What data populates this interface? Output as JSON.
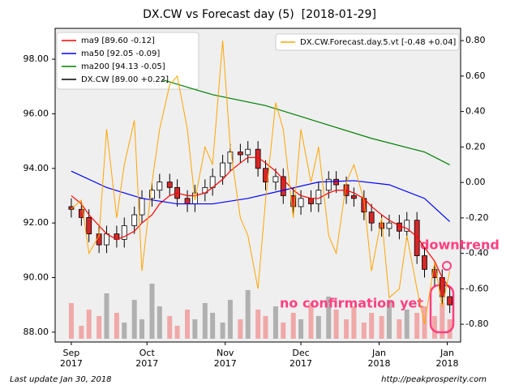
{
  "chart_data": {
    "type": "candlestick",
    "title": "DX.CW vs Forecast day (5)  [2018-01-29]",
    "footer_left": "Last update Jan 30, 2018",
    "footer_right": "http://peakprosperity.com",
    "annotations": [
      "downtrend",
      "no confirmation yet"
    ],
    "xlim": [
      -6.4,
      154.3
    ],
    "xticks": [
      {
        "value": 0,
        "label": "Sep\n2017"
      },
      {
        "value": 30,
        "label": "Oct\n2017"
      },
      {
        "value": 61,
        "label": "Nov\n2017"
      },
      {
        "value": 91,
        "label": "Dec\n2017"
      },
      {
        "value": 122,
        "label": "Jan\n2018"
      },
      {
        "value": 149,
        "label": "Jan\n2018"
      }
    ],
    "ylim": [
      87.64,
      99.13
    ],
    "yticks": [
      {
        "value": 88,
        "label": "88.00"
      },
      {
        "value": 90,
        "label": "90.00"
      },
      {
        "value": 92,
        "label": "92.00"
      },
      {
        "value": 94,
        "label": "94.00"
      },
      {
        "value": 96,
        "label": "96.00"
      },
      {
        "value": 98,
        "label": "98.00"
      }
    ],
    "y2lim": [
      -0.9,
      0.869
    ],
    "y2ticks": [
      {
        "value": -0.8,
        "label": "-0.80"
      },
      {
        "value": -0.6,
        "label": "-0.60"
      },
      {
        "value": -0.4,
        "label": "-0.40"
      },
      {
        "value": -0.2,
        "label": "-0.20"
      },
      {
        "value": 0,
        "label": "0.00"
      },
      {
        "value": 0.2,
        "label": "0.20"
      },
      {
        "value": 0.4,
        "label": "0.40"
      },
      {
        "value": 0.6,
        "label": "0.60"
      },
      {
        "value": 0.8,
        "label": "0.80"
      }
    ],
    "volume_ylim": [
      0,
      100
    ],
    "candles": {
      "name": "DX.CW [89.00 +0.22]",
      "up_color": "#ffffff",
      "down_color": "#d62728",
      "volume_up_color": "#b0b0b0",
      "volume_down_color": "#f0a8a8",
      "x": [
        0,
        4,
        7,
        11,
        14,
        18,
        21,
        25,
        28,
        32,
        35,
        39,
        42,
        46,
        49,
        53,
        56,
        60,
        63,
        67,
        70,
        74,
        77,
        81,
        84,
        88,
        91,
        95,
        98,
        102,
        105,
        109,
        112,
        116,
        119,
        123,
        126,
        130,
        133,
        137,
        140,
        144,
        147,
        150
      ],
      "open": [
        92.6,
        92.5,
        92.2,
        91.6,
        91.2,
        91.6,
        91.4,
        91.9,
        92.3,
        92.9,
        93.2,
        93.5,
        93.3,
        92.9,
        92.7,
        93.1,
        93.3,
        93.7,
        94.2,
        94.6,
        94.5,
        94.7,
        94.0,
        93.5,
        93.7,
        93.0,
        92.6,
        92.9,
        92.7,
        93.2,
        93.6,
        93.4,
        93.0,
        92.9,
        92.4,
        92.0,
        91.8,
        92.0,
        91.7,
        92.1,
        90.8,
        90.3,
        90.0,
        89.3
      ],
      "high": [
        92.9,
        92.8,
        92.5,
        91.9,
        91.9,
        91.9,
        92.2,
        92.6,
        93.2,
        93.5,
        93.8,
        93.8,
        93.6,
        93.2,
        93.4,
        93.6,
        94.0,
        94.5,
        94.9,
        94.9,
        95.0,
        95.0,
        94.3,
        94.0,
        94.0,
        93.3,
        93.2,
        93.2,
        93.5,
        93.9,
        93.9,
        93.7,
        93.3,
        93.2,
        92.7,
        92.3,
        92.3,
        92.3,
        92.4,
        92.4,
        91.1,
        90.6,
        90.3,
        89.6
      ],
      "low": [
        92.2,
        91.9,
        91.3,
        90.9,
        90.9,
        91.1,
        91.1,
        91.6,
        92.0,
        92.6,
        92.9,
        93.0,
        92.6,
        92.4,
        92.4,
        92.8,
        93.0,
        93.4,
        93.9,
        94.2,
        94.2,
        93.7,
        93.2,
        93.2,
        92.7,
        92.3,
        92.3,
        92.4,
        92.4,
        92.9,
        93.1,
        92.7,
        92.6,
        92.1,
        91.7,
        91.5,
        91.5,
        91.4,
        91.4,
        90.5,
        90.0,
        89.7,
        89.0,
        88.7
      ],
      "close": [
        92.5,
        92.2,
        91.6,
        91.2,
        91.6,
        91.4,
        91.9,
        92.3,
        92.9,
        93.2,
        93.5,
        93.3,
        92.9,
        92.7,
        93.1,
        93.3,
        93.7,
        94.2,
        94.6,
        94.5,
        94.7,
        94.0,
        93.5,
        93.7,
        93.0,
        92.6,
        92.9,
        92.7,
        93.2,
        93.6,
        93.4,
        93.0,
        92.9,
        92.4,
        92.0,
        91.8,
        92.0,
        91.7,
        92.1,
        90.8,
        90.3,
        90.0,
        89.3,
        89.0
      ],
      "volume": [
        55,
        20,
        45,
        35,
        70,
        40,
        25,
        60,
        30,
        85,
        50,
        35,
        20,
        45,
        30,
        55,
        40,
        25,
        60,
        30,
        75,
        45,
        35,
        50,
        25,
        40,
        30,
        55,
        35,
        65,
        45,
        30,
        50,
        25,
        40,
        35,
        60,
        30,
        45,
        40,
        50,
        35,
        55,
        30
      ]
    },
    "series": [
      {
        "name": "ma9 [89.60 -0.12]",
        "color": "#ff0000",
        "x": [
          0,
          4,
          7,
          11,
          14,
          18,
          21,
          25,
          28,
          32,
          35,
          39,
          42,
          46,
          49,
          53,
          56,
          60,
          63,
          67,
          70,
          74,
          77,
          81,
          84,
          88,
          91,
          95,
          98,
          102,
          105,
          109,
          112,
          116,
          119,
          123,
          126,
          130,
          133,
          137,
          140,
          144,
          147,
          150
        ],
        "values": [
          93.0,
          92.7,
          92.3,
          91.9,
          91.6,
          91.4,
          91.5,
          91.7,
          92.0,
          92.3,
          92.7,
          93.0,
          93.1,
          93.0,
          93.0,
          93.1,
          93.3,
          93.6,
          93.9,
          94.2,
          94.4,
          94.4,
          94.2,
          93.9,
          93.6,
          93.2,
          93.0,
          92.9,
          92.9,
          93.1,
          93.2,
          93.2,
          93.1,
          92.9,
          92.6,
          92.3,
          92.1,
          91.9,
          91.8,
          91.5,
          91.1,
          90.6,
          90.0,
          89.6
        ]
      },
      {
        "name": "ma50 [92.05 -0.09]",
        "color": "#0000ff",
        "x": [
          0,
          14,
          28,
          42,
          56,
          70,
          84,
          98,
          112,
          126,
          140,
          150
        ],
        "values": [
          93.9,
          93.3,
          92.9,
          92.7,
          92.7,
          92.9,
          93.2,
          93.5,
          93.55,
          93.4,
          92.9,
          92.05
        ]
      },
      {
        "name": "ma200 [94.13 -0.05]",
        "color": "#008000",
        "x": [
          36,
          56,
          77,
          98,
          119,
          140,
          150
        ],
        "values": [
          97.25,
          96.7,
          96.3,
          95.7,
          95.1,
          94.6,
          94.13
        ]
      },
      {
        "name": "DX.CW.Forecast.day.5.vt [-0.48 +0.04]",
        "color": "#ffa500",
        "axis": "y2",
        "x": [
          0,
          4,
          7,
          11,
          14,
          18,
          21,
          25,
          28,
          32,
          35,
          39,
          42,
          46,
          49,
          53,
          56,
          60,
          63,
          67,
          70,
          74,
          77,
          81,
          84,
          88,
          91,
          95,
          98,
          102,
          105,
          109,
          112,
          116,
          119,
          123,
          126,
          130,
          133,
          137,
          140,
          144,
          147,
          150
        ],
        "values": [
          -0.15,
          -0.1,
          -0.4,
          -0.3,
          0.3,
          -0.2,
          0.1,
          0.35,
          -0.5,
          0.0,
          0.3,
          0.55,
          0.6,
          0.3,
          -0.1,
          0.2,
          0.1,
          0.8,
          0.2,
          -0.2,
          -0.3,
          -0.6,
          -0.1,
          0.45,
          0.3,
          -0.2,
          0.3,
          0.0,
          0.2,
          -0.3,
          -0.4,
          0.0,
          0.1,
          -0.1,
          -0.5,
          -0.2,
          -0.65,
          -0.6,
          -0.3,
          -0.6,
          -0.8,
          -0.45,
          -0.7,
          -0.5
        ]
      }
    ]
  }
}
